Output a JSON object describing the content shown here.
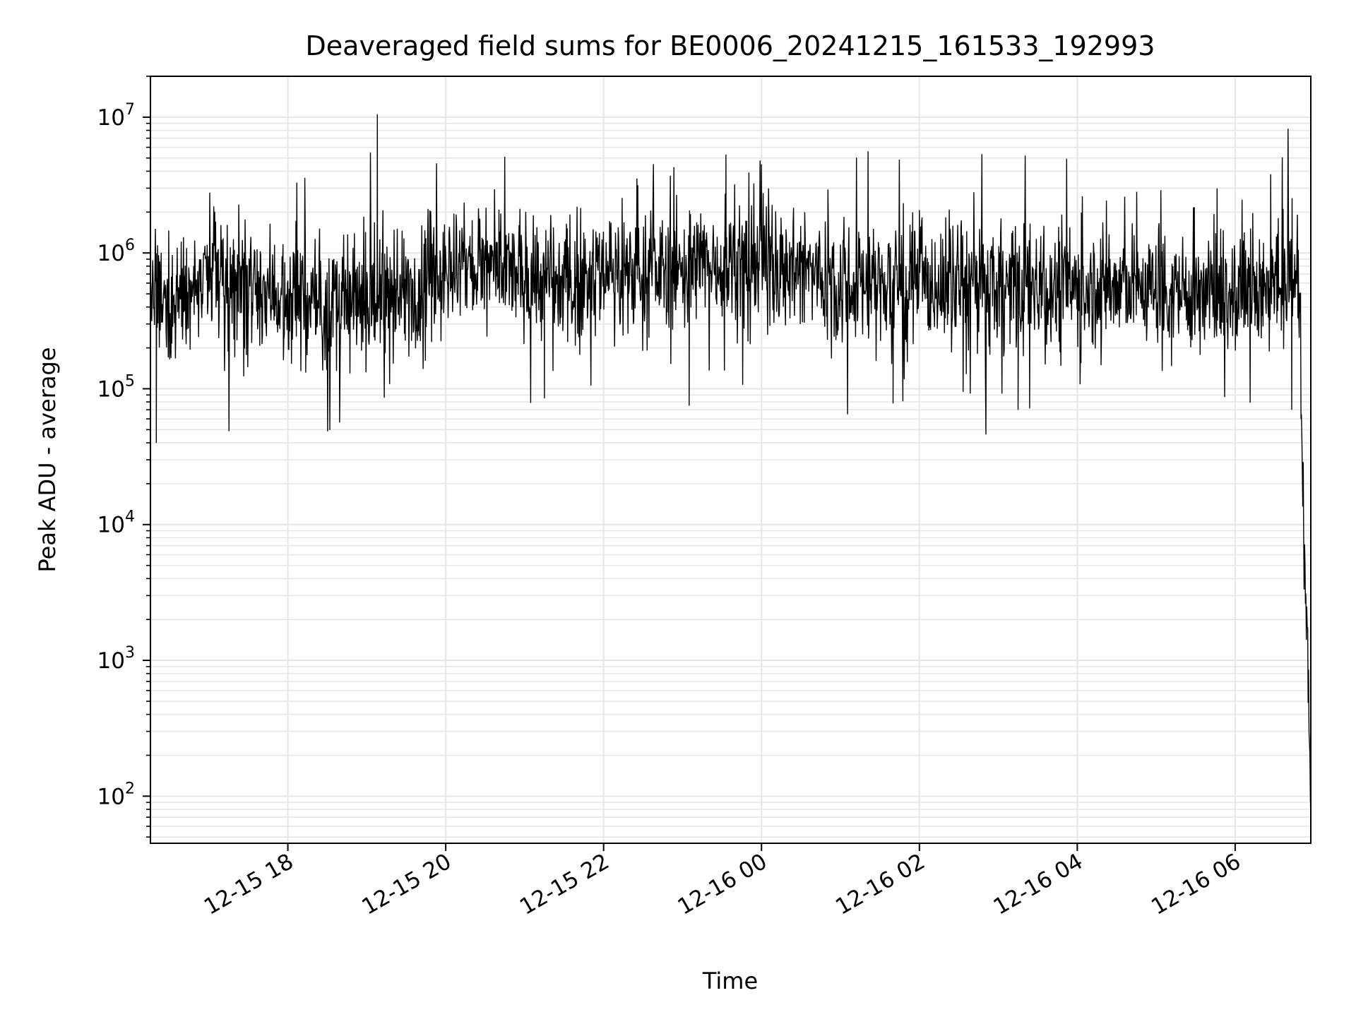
{
  "chart_data": {
    "type": "line",
    "title": "Deaveraged field sums for BE0006_20241215_161533_192993",
    "xlabel": "Time",
    "ylabel": "Peak ADU - average",
    "yscale": "log",
    "ylim": [
      45,
      20000000
    ],
    "xlim": [
      "2024-12-15 16:15:33",
      "2024-12-16 06:57:30"
    ],
    "grid": true,
    "colors": {
      "line": "#000000",
      "grid": "#e6e6e6",
      "axes": "#000000"
    },
    "x_ticks": [
      {
        "label": "12-15 18",
        "time": "2024-12-15 18:00"
      },
      {
        "label": "12-15 20",
        "time": "2024-12-15 20:00"
      },
      {
        "label": "12-15 22",
        "time": "2024-12-15 22:00"
      },
      {
        "label": "12-16 00",
        "time": "2024-12-16 00:00"
      },
      {
        "label": "12-16 02",
        "time": "2024-12-16 02:00"
      },
      {
        "label": "12-16 04",
        "time": "2024-12-16 04:00"
      },
      {
        "label": "12-16 06",
        "time": "2024-12-16 06:00"
      }
    ],
    "y_ticks": [
      {
        "base": "10",
        "exp": "2",
        "value": 100
      },
      {
        "base": "10",
        "exp": "3",
        "value": 1000
      },
      {
        "base": "10",
        "exp": "4",
        "value": 10000
      },
      {
        "base": "10",
        "exp": "5",
        "value": 100000
      },
      {
        "base": "10",
        "exp": "6",
        "value": 1000000
      },
      {
        "base": "10",
        "exp": "7",
        "value": 10000000
      }
    ],
    "series": [
      {
        "style": "noisy trace, ~1 sample per 10 s",
        "x": [
          "2024-12-15 16:15:33",
          "2024-12-15 16:30",
          "2024-12-15 17:00",
          "2024-12-15 17:30",
          "2024-12-15 18:00",
          "2024-12-15 18:30",
          "2024-12-15 19:00",
          "2024-12-15 19:30",
          "2024-12-15 19:55",
          "2024-12-15 20:30",
          "2024-12-15 21:00",
          "2024-12-15 21:30",
          "2024-12-15 22:00",
          "2024-12-15 22:30",
          "2024-12-15 23:00",
          "2024-12-15 23:30",
          "2024-12-16 00:00",
          "2024-12-16 00:30",
          "2024-12-16 01:00",
          "2024-12-16 01:30",
          "2024-12-16 02:00",
          "2024-12-16 02:30",
          "2024-12-16 03:00",
          "2024-12-16 03:30",
          "2024-12-16 04:00",
          "2024-12-16 04:30",
          "2024-12-16 05:00",
          "2024-12-16 05:30",
          "2024-12-16 06:00",
          "2024-12-16 06:30",
          "2024-12-16 06:48",
          "2024-12-16 06:52",
          "2024-12-16 06:54",
          "2024-12-16 06:56",
          "2024-12-16 06:57:30"
        ],
        "y": [
          400000,
          500000,
          600000,
          580000,
          500000,
          380000,
          430000,
          520000,
          750000,
          800000,
          650000,
          560000,
          800000,
          700000,
          780000,
          850000,
          950000,
          760000,
          620000,
          600000,
          560000,
          600000,
          560000,
          580000,
          560000,
          560000,
          560000,
          500000,
          500000,
          600000,
          700000,
          10000,
          2000,
          500,
          80
        ],
        "spikes": [
          {
            "x": "2024-12-15 19:08",
            "y": 10500000
          },
          {
            "x": "2024-12-15 23:33",
            "y": 5300000
          },
          {
            "x": "2024-12-16 00:00",
            "y": 4500000
          },
          {
            "x": "2024-12-16 06:27",
            "y": 3800000
          }
        ],
        "dips": [
          {
            "x": "2024-12-15 16:20",
            "y": 40000
          },
          {
            "x": "2024-12-15 21:15",
            "y": 85000
          },
          {
            "x": "2024-12-15 23:05",
            "y": 75000
          },
          {
            "x": "2024-12-16 01:40",
            "y": 78000
          },
          {
            "x": "2024-12-16 03:15",
            "y": 70000
          },
          {
            "x": "2024-12-16 06:43",
            "y": 70000
          }
        ]
      }
    ]
  }
}
